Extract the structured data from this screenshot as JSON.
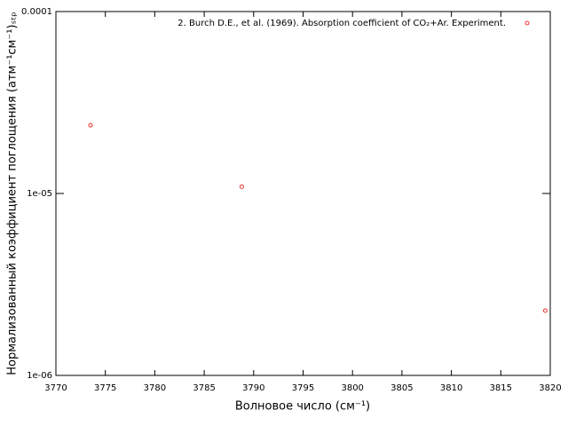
{
  "chart_data": {
    "type": "scatter",
    "xlabel": "Волновое число (см⁻¹)",
    "ylabel": "Нормализованный коэффициент поглощения (атм⁻¹см⁻¹)ₛₜₚ",
    "series": [
      {
        "name": "2. Burch D.E., et al. (1969). Absorption coefficient of CO₂+Ar. Experiment.",
        "color": "#e8342e",
        "x": [
          3773.5,
          3788.8,
          3819.5
        ],
        "values": [
          2.37e-05,
          1.09e-05,
          2.27e-06
        ]
      }
    ],
    "xlim": [
      3770,
      3820
    ],
    "xticks": [
      3770,
      3775,
      3780,
      3785,
      3790,
      3795,
      3800,
      3805,
      3810,
      3815,
      3820
    ],
    "ylim": [
      1e-06,
      0.0001
    ],
    "yticks": [
      {
        "value": 1e-06,
        "label": "1e-06"
      },
      {
        "value": 1e-05,
        "label": "1e-05"
      },
      0.0001
    ],
    "log_y": true,
    "grid": false,
    "legend": "top-right"
  }
}
